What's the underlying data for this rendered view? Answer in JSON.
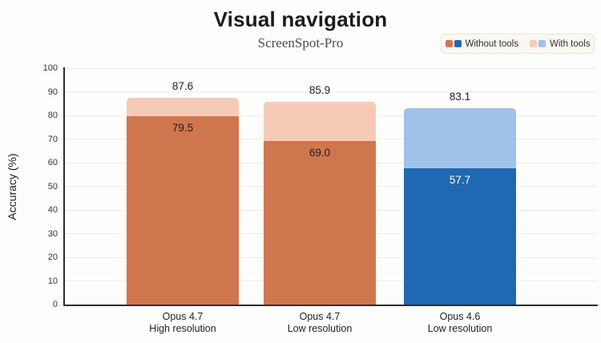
{
  "title": "Visual navigation",
  "subtitle": "ScreenSpot-Pro",
  "legend": [
    {
      "label": "Without tools",
      "swatches": [
        "#d0764f",
        "#2168b3"
      ]
    },
    {
      "label": "With tools",
      "swatches": [
        "#f5cbb8",
        "#9fc2e8"
      ]
    }
  ],
  "chart_data": {
    "type": "bar",
    "title": "Visual navigation",
    "subtitle": "ScreenSpot-Pro",
    "ylabel": "Accuracy (%)",
    "ylim": [
      0,
      100
    ],
    "yticks": [
      0,
      10,
      20,
      30,
      40,
      50,
      60,
      70,
      80,
      90,
      100
    ],
    "grid": true,
    "legend_position": "top-right",
    "categories": [
      [
        "Opus 4.7",
        "High resolution"
      ],
      [
        "Opus 4.7",
        "Low resolution"
      ],
      [
        "Opus 4.6",
        "Low resolution"
      ]
    ],
    "series": [
      {
        "name": "With tools",
        "values": [
          87.6,
          85.9,
          83.1
        ],
        "labels": [
          "87.6",
          "85.9",
          "83.1"
        ],
        "colors": [
          "#f5cbb8",
          "#f5cbb8",
          "#9fc2e8"
        ]
      },
      {
        "name": "Without tools",
        "values": [
          79.5,
          69.0,
          57.7
        ],
        "labels": [
          "79.5",
          "69.0",
          "57.7"
        ],
        "colors": [
          "#d0764f",
          "#d0764f",
          "#2168b3"
        ],
        "label_colors": [
          "#1f1f1f",
          "#1f1f1f",
          "#ffffff"
        ]
      }
    ]
  }
}
